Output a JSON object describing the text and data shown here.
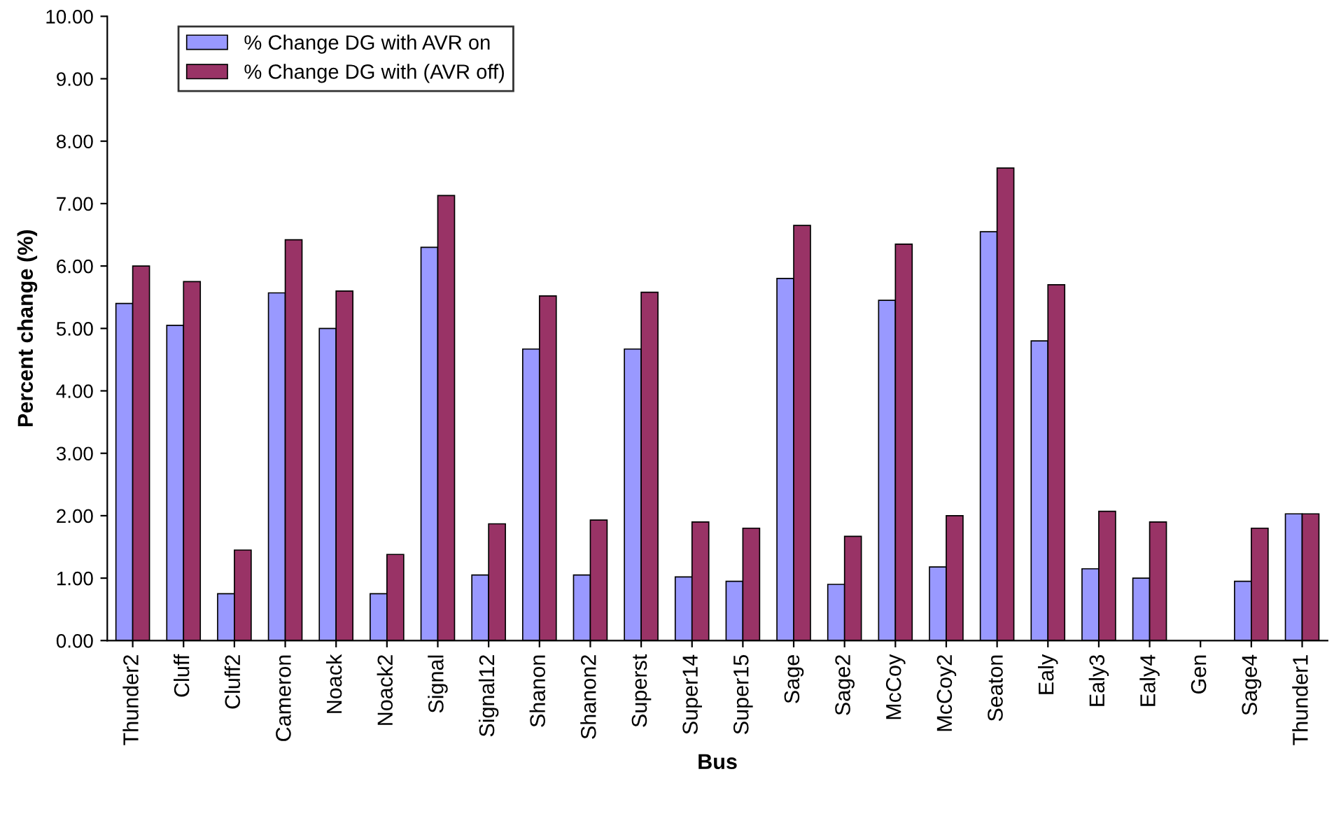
{
  "chart_data": {
    "type": "bar",
    "xlabel": "Bus",
    "ylabel": "Percent change (%)",
    "categories": [
      "Thunder2",
      "Cluff",
      "Cluff2",
      "Cameron",
      "Noack",
      "Noack2",
      "Signal",
      "Signal12",
      "Shanon",
      "Shanon2",
      "Superst",
      "Super14",
      "Super15",
      "Sage",
      "Sage2",
      "McCoy",
      "McCoy2",
      "Seaton",
      "Ealy",
      "Ealy3",
      "Ealy4",
      "Gen",
      "Sage4",
      "Thunder1"
    ],
    "series": [
      {
        "name": "% Change DG with AVR on",
        "color": "#9999ff",
        "values": [
          5.4,
          5.05,
          0.75,
          5.57,
          5.0,
          0.75,
          6.3,
          1.05,
          4.67,
          1.05,
          4.67,
          1.02,
          0.95,
          5.8,
          0.9,
          5.45,
          1.18,
          6.55,
          4.8,
          1.15,
          1.0,
          null,
          0.95,
          2.03
        ]
      },
      {
        "name": "% Change DG with (AVR off)",
        "color": "#993366",
        "values": [
          6.0,
          5.75,
          1.45,
          6.42,
          5.6,
          1.38,
          7.13,
          1.87,
          5.52,
          1.93,
          5.58,
          1.9,
          1.8,
          6.65,
          1.67,
          6.35,
          2.0,
          7.57,
          5.7,
          2.07,
          1.9,
          null,
          1.8,
          2.03
        ]
      }
    ],
    "ylim": [
      0,
      10
    ],
    "yticks": [
      {
        "value": 0,
        "label": "0.00"
      },
      {
        "value": 1,
        "label": "1.00"
      },
      {
        "value": 2,
        "label": "2.00"
      },
      {
        "value": 3,
        "label": "3.00"
      },
      {
        "value": 4,
        "label": "4.00"
      },
      {
        "value": 5,
        "label": "5.00"
      },
      {
        "value": 6,
        "label": "6.00"
      },
      {
        "value": 7,
        "label": "7.00"
      },
      {
        "value": 8,
        "label": "8.00"
      },
      {
        "value": 9,
        "label": "9.00"
      },
      {
        "value": 10,
        "label": "10.00"
      }
    ],
    "grid": false,
    "legend": "top left"
  }
}
